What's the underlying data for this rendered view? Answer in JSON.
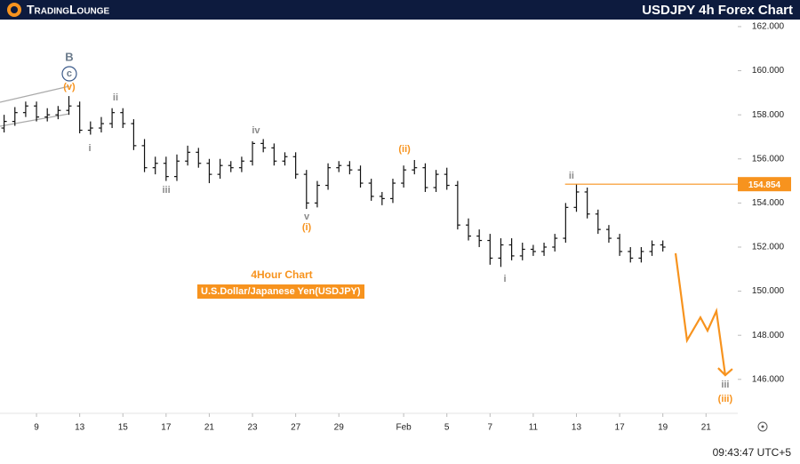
{
  "logo": "TradingLounge",
  "timestamp": "09:43:47 UTC+5",
  "notes": [
    "4Hour Chart",
    "U.S.Dollar/Japanese Yen(USDJPY)"
  ],
  "chart_data": {
    "type": "ohlc",
    "title": "USDJPY 4h Forex Chart",
    "color": "#111111",
    "x": [
      -1.5,
      -1,
      -0.5,
      0,
      0.5,
      1,
      1.5,
      2,
      2.5,
      3,
      3.5,
      4,
      4.5,
      5,
      5.5,
      6,
      6.5,
      7,
      7.5,
      8,
      8.5,
      9,
      9.5,
      10,
      10.5,
      11,
      11.5,
      12,
      12.5,
      13,
      13.5,
      14,
      14.5,
      15,
      15.5,
      16,
      16.5,
      17,
      17.5,
      18,
      18.5,
      19,
      19.5,
      20,
      20.5,
      21,
      21.5,
      22,
      22.5,
      23,
      23.5,
      24,
      24.5,
      25,
      25.5,
      26,
      26.5,
      27,
      27.5,
      28,
      28.5,
      29
    ],
    "open": [
      157.4,
      157.7,
      158.1,
      158.4,
      157.9,
      158.0,
      158.2,
      158.4,
      157.3,
      157.4,
      157.6,
      158.1,
      157.6,
      156.6,
      155.6,
      155.8,
      155.2,
      155.9,
      156.3,
      155.8,
      155.3,
      155.7,
      155.6,
      155.9,
      156.7,
      156.5,
      155.9,
      156.1,
      155.3,
      154.0,
      154.8,
      155.6,
      155.7,
      155.5,
      154.9,
      154.3,
      154.2,
      154.9,
      155.5,
      155.6,
      154.7,
      155.3,
      154.8,
      153.0,
      152.5,
      152.3,
      151.5,
      152.1,
      151.6,
      151.9,
      151.8,
      152.0,
      152.4,
      153.8,
      154.5,
      153.5,
      152.8,
      152.4,
      151.8,
      151.5,
      151.8,
      152.1
    ],
    "high": [
      158.0,
      158.35,
      158.6,
      158.6,
      158.3,
      158.4,
      158.85,
      158.6,
      157.7,
      157.9,
      158.3,
      158.3,
      157.8,
      156.9,
      156.1,
      156.1,
      156.2,
      156.6,
      156.5,
      156.0,
      156.0,
      155.9,
      156.1,
      156.8,
      156.9,
      156.7,
      156.3,
      156.3,
      155.5,
      155.0,
      155.8,
      155.9,
      155.9,
      155.7,
      155.1,
      154.5,
      155.1,
      155.7,
      155.95,
      155.8,
      155.5,
      155.6,
      155.0,
      153.3,
      152.8,
      152.6,
      152.4,
      152.4,
      152.2,
      152.1,
      152.2,
      152.6,
      154.0,
      154.86,
      154.7,
      153.7,
      153.0,
      152.6,
      152.0,
      152.0,
      152.3,
      152.3
    ],
    "low": [
      157.2,
      157.5,
      157.9,
      157.7,
      157.7,
      157.8,
      158.0,
      157.16,
      157.1,
      157.2,
      157.4,
      157.4,
      156.4,
      155.4,
      155.3,
      155.0,
      155.0,
      155.7,
      155.6,
      154.9,
      155.1,
      155.4,
      155.4,
      155.7,
      156.3,
      155.7,
      155.7,
      155.1,
      153.73,
      153.8,
      154.6,
      155.4,
      155.3,
      154.7,
      154.1,
      153.9,
      154.0,
      154.7,
      155.3,
      154.5,
      154.5,
      154.6,
      152.8,
      152.3,
      152.0,
      151.2,
      151.1,
      151.4,
      151.4,
      151.6,
      151.6,
      151.8,
      152.2,
      153.6,
      153.3,
      152.6,
      152.2,
      151.6,
      151.3,
      151.3,
      151.6,
      151.8
    ],
    "close": [
      157.7,
      158.1,
      158.4,
      157.9,
      158.0,
      158.2,
      158.4,
      157.3,
      157.4,
      157.6,
      158.1,
      157.6,
      156.6,
      155.6,
      155.8,
      155.2,
      155.9,
      156.3,
      155.8,
      155.3,
      155.7,
      155.6,
      155.9,
      156.7,
      156.5,
      155.9,
      156.1,
      155.3,
      154.0,
      154.8,
      155.6,
      155.7,
      155.5,
      154.9,
      154.3,
      154.2,
      154.9,
      155.5,
      155.6,
      154.7,
      155.3,
      154.8,
      153.0,
      152.5,
      152.3,
      151.5,
      152.1,
      151.6,
      151.9,
      151.8,
      152.0,
      152.4,
      153.8,
      154.5,
      153.5,
      152.8,
      152.4,
      151.8,
      151.5,
      151.8,
      152.1,
      152.0
    ],
    "xlim": [
      -1.69,
      32.47
    ],
    "ylim": [
      144.46,
      162.32
    ],
    "xticks": [
      {
        "value": 0,
        "label": "9"
      },
      {
        "value": 2,
        "label": "13"
      },
      {
        "value": 4,
        "label": "15"
      },
      {
        "value": 6,
        "label": "17"
      },
      {
        "value": 8,
        "label": "21"
      },
      {
        "value": 10,
        "label": "23"
      },
      {
        "value": 12,
        "label": "27"
      },
      {
        "value": 14,
        "label": "29"
      },
      {
        "value": 17,
        "label": "Feb"
      },
      {
        "value": 19,
        "label": "5"
      },
      {
        "value": 21,
        "label": "7"
      },
      {
        "value": 23,
        "label": "11"
      },
      {
        "value": 25,
        "label": "13"
      },
      {
        "value": 27,
        "label": "17"
      },
      {
        "value": 29,
        "label": "19"
      },
      {
        "value": 31,
        "label": "21"
      }
    ],
    "yticks": [
      {
        "value": 146,
        "label": "146.000"
      },
      {
        "value": 148,
        "label": "148.000"
      },
      {
        "value": 150,
        "label": "150.000"
      },
      {
        "value": 152,
        "label": "152.000"
      },
      {
        "value": 154,
        "label": "154.000"
      },
      {
        "value": 156,
        "label": "156.000"
      },
      {
        "value": 158,
        "label": "158.000"
      },
      {
        "value": 160,
        "label": "160.000"
      },
      {
        "value": 162,
        "label": "162.000"
      }
    ],
    "level": {
      "value": 154.854,
      "color": "#f7931e"
    },
    "projection": {
      "color": "#f7931e",
      "x": [
        29.59,
        30.12,
        30.74,
        31.07,
        31.48,
        31.89
      ],
      "values": [
        151.72,
        147.77,
        148.81,
        148.21,
        149.1,
        146.19
      ]
    },
    "annotations": [
      {
        "text": "B",
        "x": 1.52,
        "y": 160.59,
        "color": "#6b7b8c"
      },
      {
        "text": "c",
        "x": 1.52,
        "y": 159.86,
        "color": "#6b7b8c",
        "circled": true
      },
      {
        "text": "(v)",
        "x": 1.52,
        "y": 159.26,
        "color": "#f7931e"
      },
      {
        "text": "ii",
        "x": 3.66,
        "y": 158.77,
        "color": "#8a8a8a"
      },
      {
        "text": "i",
        "x": 2.47,
        "y": 156.48,
        "color": "#8a8a8a"
      },
      {
        "text": "iii",
        "x": 6.01,
        "y": 154.58,
        "color": "#8a8a8a"
      },
      {
        "text": "iv",
        "x": 10.16,
        "y": 157.28,
        "color": "#8a8a8a"
      },
      {
        "text": "v",
        "x": 12.51,
        "y": 153.37,
        "color": "#8a8a8a"
      },
      {
        "text": "(i)",
        "x": 12.51,
        "y": 152.89,
        "color": "#f7931e"
      },
      {
        "text": "(ii)",
        "x": 17.04,
        "y": 156.44,
        "color": "#f7931e"
      },
      {
        "text": "i",
        "x": 21.69,
        "y": 150.55,
        "color": "#8a8a8a"
      },
      {
        "text": "ii",
        "x": 24.77,
        "y": 155.23,
        "color": "#8a8a8a"
      },
      {
        "text": "iii",
        "x": 31.89,
        "y": 145.75,
        "color": "#8a8a8a"
      },
      {
        "text": "(iii)",
        "x": 31.89,
        "y": 145.1,
        "color": "#f7931e"
      }
    ]
  }
}
